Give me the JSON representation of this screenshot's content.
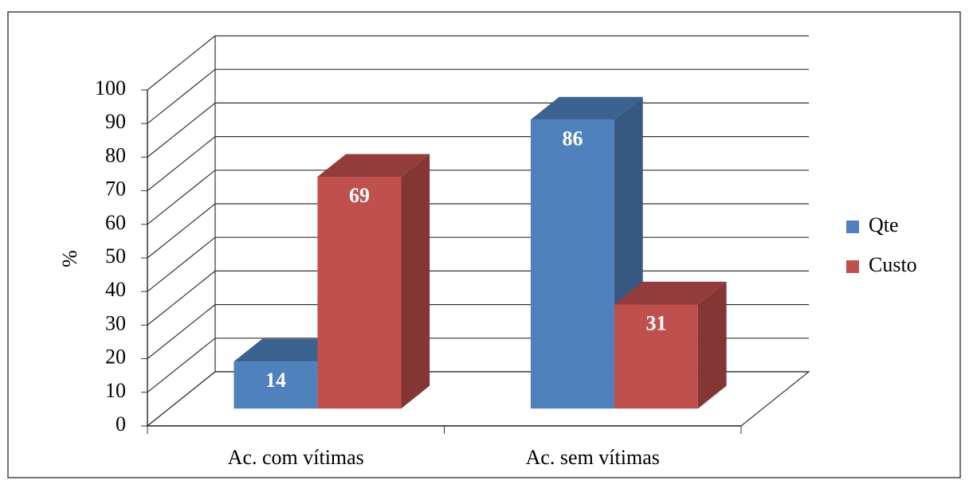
{
  "chart_data": {
    "type": "bar3d",
    "y_axis_label": "%",
    "categories": [
      "Ac. com vítimas",
      "Ac. sem vítimas"
    ],
    "series": [
      {
        "name": "Qte",
        "color": "#4f81bd",
        "values": [
          14,
          86
        ]
      },
      {
        "name": "Custo",
        "color": "#c0504d",
        "values": [
          69,
          31
        ]
      }
    ],
    "ylim": [
      0,
      100
    ],
    "yticks": [
      0,
      10,
      20,
      30,
      40,
      50,
      60,
      70,
      80,
      90,
      100
    ],
    "grid": true,
    "legend": "right"
  }
}
